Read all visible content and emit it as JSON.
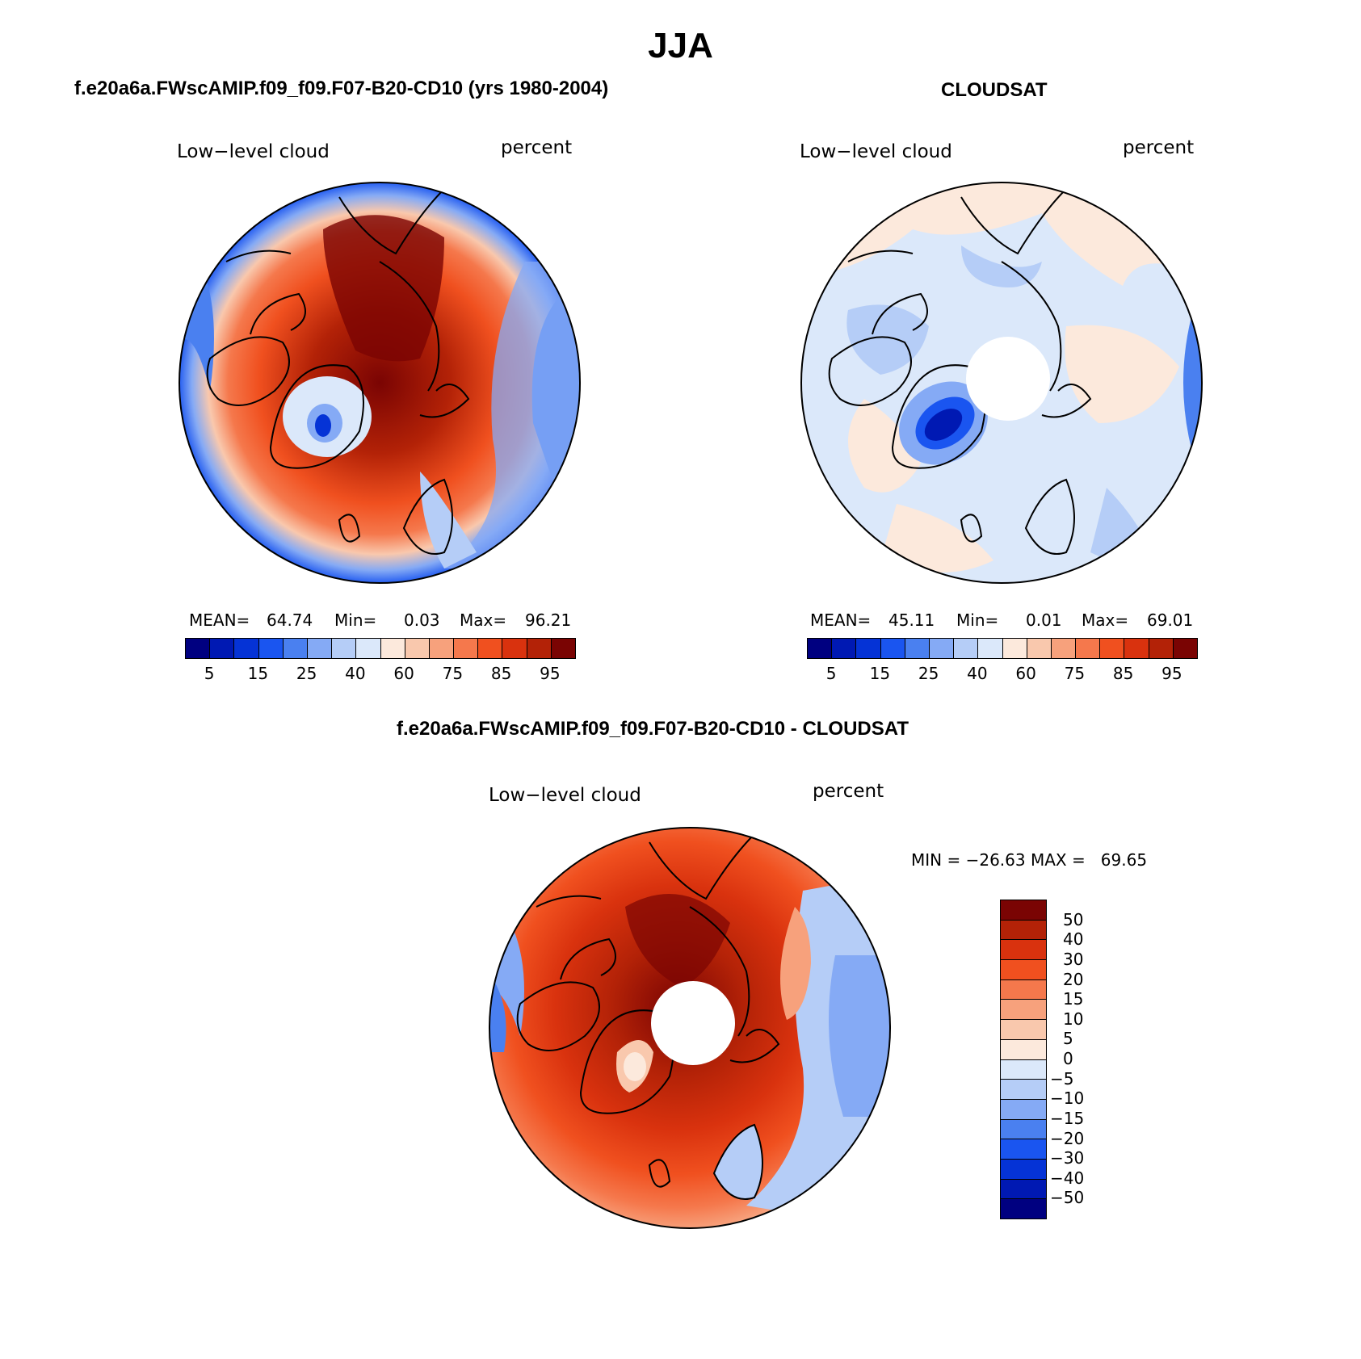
{
  "figure": {
    "title": "JJA"
  },
  "panels": {
    "model": {
      "title": "f.e20a6a.FWscAMIP.f09_f09.F07-B20-CD10 (yrs 1980-2004)",
      "left_label": "Low−level cloud",
      "right_label": "percent",
      "mean_label": "MEAN=",
      "mean_value": "64.74",
      "min_label": "Min=",
      "min_value": "0.03",
      "max_label": "Max=",
      "max_value": "96.21",
      "colorbar_ticks": [
        "5",
        "15",
        "25",
        "40",
        "60",
        "75",
        "85",
        "95"
      ]
    },
    "obs": {
      "title": "CLOUDSAT",
      "left_label": "Low−level cloud",
      "right_label": "percent",
      "mean_label": "MEAN=",
      "mean_value": "45.11",
      "min_label": "Min=",
      "min_value": "0.01",
      "max_label": "Max=",
      "max_value": "69.01",
      "colorbar_ticks": [
        "5",
        "15",
        "25",
        "40",
        "60",
        "75",
        "85",
        "95"
      ]
    },
    "diff": {
      "title": "f.e20a6a.FWscAMIP.f09_f09.F07-B20-CD10 - CLOUDSAT",
      "left_label": "Low−level cloud",
      "right_label": "percent",
      "minmax_text": "MIN = −26.63 MAX =   69.65",
      "colorbar_ticks": [
        "50",
        "40",
        "30",
        "20",
        "15",
        "10",
        "5",
        "0",
        "−5",
        "−10",
        "−15",
        "−20",
        "−30",
        "−40",
        "−50"
      ]
    }
  },
  "colors": {
    "abs_scale": [
      "#000080",
      "#0019b3",
      "#0533d6",
      "#1a55f0",
      "#4a80f0",
      "#85aaf5",
      "#b5cdf7",
      "#dbe8fa",
      "#fce9dc",
      "#f9c8ad",
      "#f7a17c",
      "#f5784c",
      "#f0501f",
      "#d9320e",
      "#b32207",
      "#7a0403"
    ],
    "diff_scale": [
      "#7a0403",
      "#b32207",
      "#d9320e",
      "#f0501f",
      "#f5784c",
      "#f7a17c",
      "#f9c8ad",
      "#fce9dc",
      "#dbe8fa",
      "#b5cdf7",
      "#85aaf5",
      "#4a80f0",
      "#1a55f0",
      "#0533d6",
      "#0019b3",
      "#000080"
    ]
  }
}
